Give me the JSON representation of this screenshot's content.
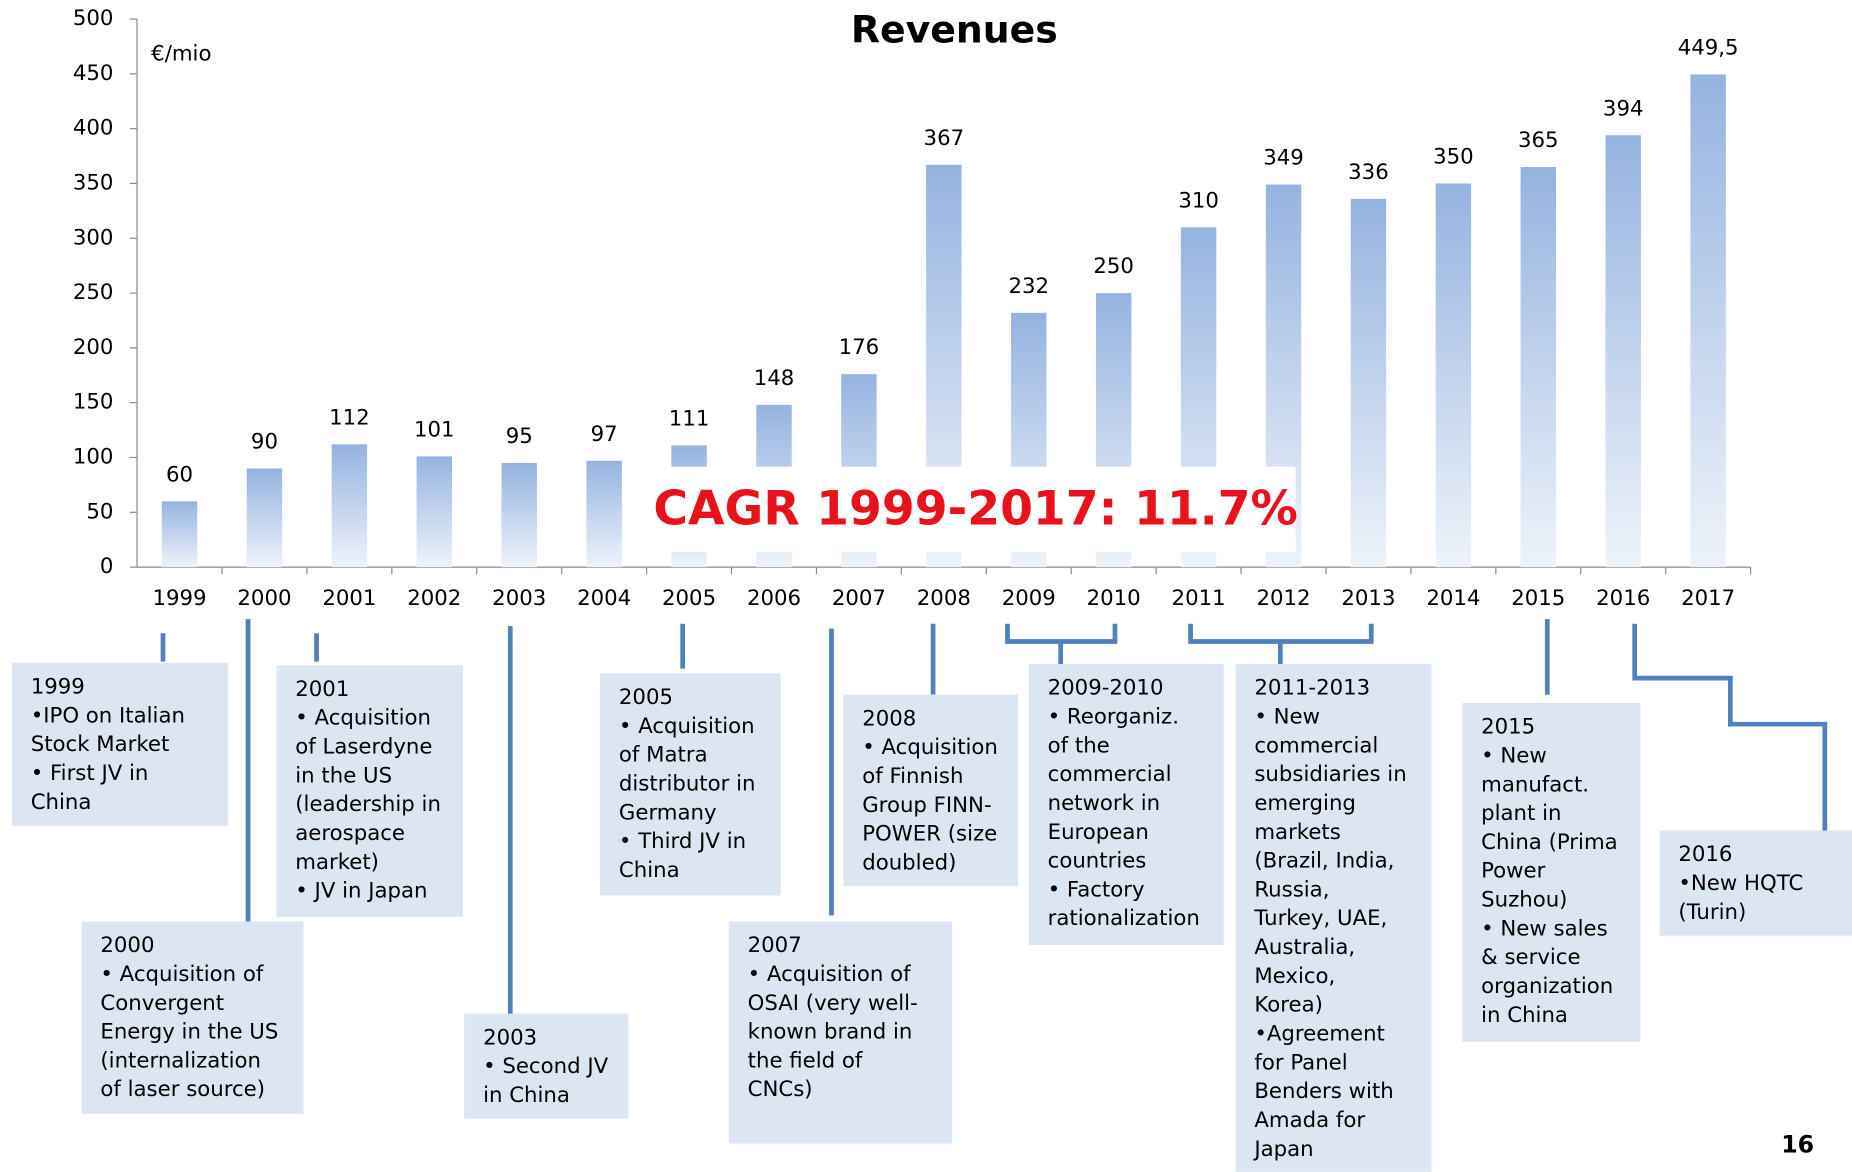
{
  "chart_data": {
    "type": "bar",
    "title": "Revenues",
    "y_unit": "€/mio",
    "categories": [
      "1999",
      "2000",
      "2001",
      "2002",
      "2003",
      "2004",
      "2005",
      "2006",
      "2007",
      "2008",
      "2009",
      "2010",
      "2011",
      "2012",
      "2013",
      "2014",
      "2015",
      "2016",
      "2017"
    ],
    "values": [
      60,
      90,
      112,
      101,
      95,
      97,
      111,
      148,
      176,
      367,
      232,
      250,
      310,
      349,
      336,
      350,
      365,
      394,
      449.5
    ],
    "value_labels": [
      "60",
      "90",
      "112",
      "101",
      "95",
      "97",
      "111",
      "148",
      "176",
      "367",
      "232",
      "250",
      "310",
      "349",
      "336",
      "350",
      "365",
      "394",
      "449,5"
    ],
    "color": "#95b3e0",
    "ylim": [
      0,
      500
    ],
    "yticks": [
      0,
      50,
      100,
      150,
      200,
      250,
      300,
      350,
      400,
      450,
      500
    ],
    "grid": false,
    "highlight": "CAGR 1999-2017: 11.7%",
    "page_number": "16"
  },
  "annotations": [
    {
      "lines": [
        "1999",
        "•IPO on Italian",
        "Stock Market",
        "• First JV in",
        "China"
      ]
    },
    {
      "lines": [
        "2000",
        "• Acquisition of",
        "Convergent",
        "Energy in the US",
        "(internalization",
        "of laser source)"
      ]
    },
    {
      "lines": [
        "2001",
        "• Acquisition",
        "of Laserdyne",
        "in the US",
        "(leadership in",
        "aerospace",
        "market)",
        "• JV in Japan"
      ]
    },
    {
      "lines": [
        "2003",
        "• Second JV",
        "in China"
      ]
    },
    {
      "lines": [
        "2005",
        "• Acquisition",
        "of Matra",
        "distributor in",
        "Germany",
        "• Third JV in",
        "China"
      ]
    },
    {
      "lines": [
        "2007",
        "• Acquisition of",
        "OSAI (very well-",
        "known brand in",
        "the field of",
        "CNCs)"
      ]
    },
    {
      "lines": [
        "2008",
        "• Acquisition",
        "of Finnish",
        "Group FINN-",
        "POWER (size",
        "doubled)"
      ]
    },
    {
      "lines": [
        "2009-2010",
        "• Reorganiz.",
        "of the",
        "commercial",
        "network in",
        "European",
        "countries",
        "• Factory",
        "rationalization"
      ]
    },
    {
      "lines": [
        "2011-2013",
        "• New",
        "commercial",
        "subsidiaries in",
        "emerging",
        "markets",
        "(Brazil, India,",
        "Russia,",
        "Turkey, UAE,",
        "Australia,",
        "Mexico,",
        "Korea)",
        "•Agreement",
        "for Panel",
        "Benders with",
        "Amada for",
        "Japan"
      ]
    },
    {
      "lines": [
        "2015",
        "•  New",
        "manufact.",
        "plant in",
        "China (Prima",
        "Power",
        "Suzhou)",
        "• New sales",
        "& service",
        "organization",
        "in China"
      ]
    },
    {
      "lines": [
        "2016",
        "•New HQTC",
        "(Turin)"
      ]
    }
  ]
}
